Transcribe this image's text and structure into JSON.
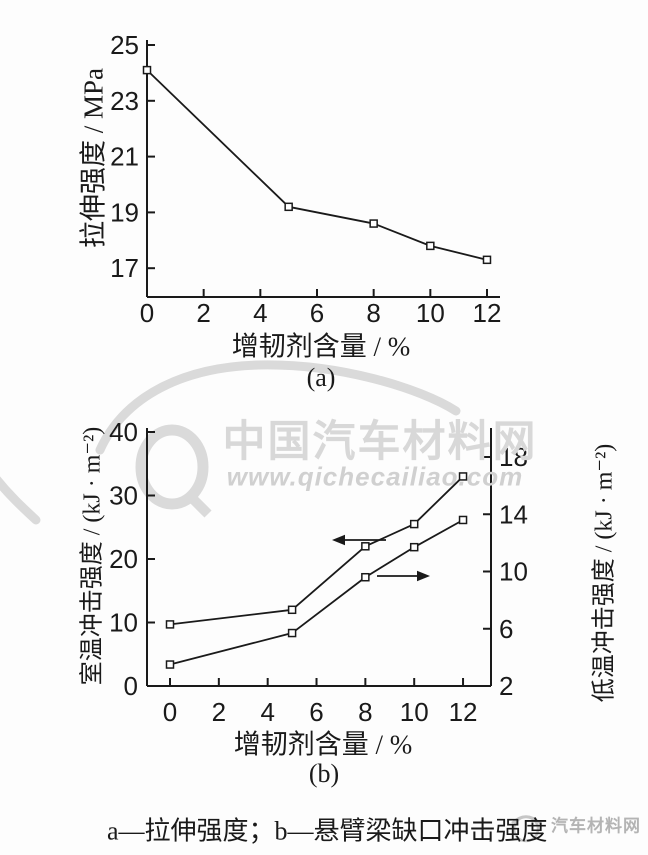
{
  "caption": "a—拉伸强度；b—悬臂梁缺口冲击强度",
  "watermark": {
    "brand": "中国汽车材料网",
    "url": "www.qichecailiao.com",
    "small_brand": "汽车材料网",
    "brand_color": "#d8d8d8",
    "url_color": "#d0d0d0",
    "small_color": "#b4b4b4",
    "logo_color": "#dadada"
  },
  "chart_data": [
    {
      "id": "a",
      "type": "line",
      "xlabel": "增韧剂含量 / %",
      "ylabel": "拉伸强度 / MPa",
      "panel_label": "(a)",
      "x_ticks": [
        0,
        2,
        4,
        6,
        8,
        10,
        12
      ],
      "y_ticks": [
        17,
        19,
        21,
        23,
        25
      ],
      "xlim": [
        0,
        12.5
      ],
      "ylim": [
        16,
        25.2
      ],
      "grid": false,
      "legend": "none",
      "line_color": "#1a1a1a",
      "marker": "open-square",
      "series": [
        {
          "name": "拉伸强度",
          "x": [
            0,
            5,
            8,
            10,
            12
          ],
          "y": [
            24.1,
            19.2,
            18.6,
            17.8,
            17.3
          ]
        }
      ]
    },
    {
      "id": "b",
      "type": "line",
      "xlabel": "增韧剂含量 / %",
      "ylabel_left": "室温冲击强度 / (kJ · m⁻²)",
      "ylabel_right": "低温冲击强度 / (kJ · m⁻²)",
      "panel_label": "(b)",
      "x_ticks": [
        0,
        2,
        4,
        6,
        8,
        10,
        12
      ],
      "y_ticks_left": [
        0,
        10,
        20,
        30,
        40
      ],
      "y_ticks_right": [
        2,
        6,
        10,
        14,
        18
      ],
      "xlim": [
        -1,
        13.2
      ],
      "ylim_left": [
        0,
        40.6
      ],
      "ylim_right": [
        2,
        20.1
      ],
      "grid": false,
      "legend": "none",
      "line_color": "#1a1a1a",
      "marker": "open-square",
      "series": [
        {
          "name": "室温冲击强度",
          "axis": "left",
          "x": [
            0,
            5,
            8,
            10,
            12
          ],
          "y": [
            9.7,
            12.0,
            22.0,
            25.5,
            33.0
          ],
          "annotation_arrow": "points-left-toward-left-axis"
        },
        {
          "name": "低温冲击强度",
          "axis": "right",
          "x": [
            0,
            5,
            8,
            10,
            12
          ],
          "y": [
            3.5,
            5.7,
            9.6,
            11.7,
            13.6
          ],
          "annotation_arrow": "points-right-toward-right-axis"
        }
      ]
    }
  ]
}
